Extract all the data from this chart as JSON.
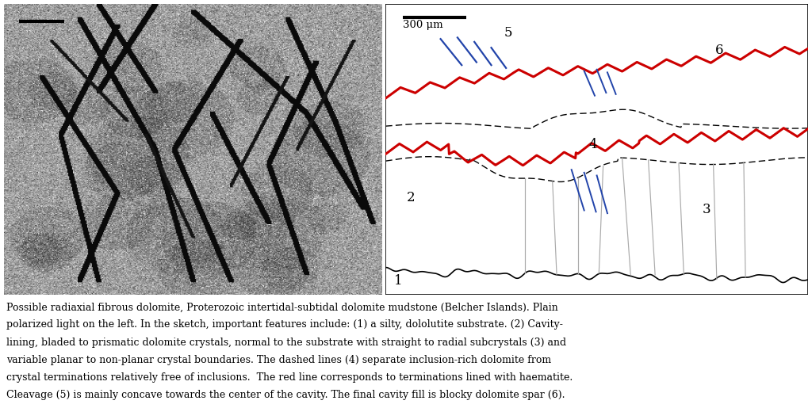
{
  "caption": "Possible radiaxial fibrous dolomite, Proterozoic intertidal-subtidal dolomite mudstone (Belcher Islands). Plain polarized light on the left. In the sketch, important features include: (1) a silty, dololutite substrate. (2) Cavity-lining, bladed to prismatic dolomite crystals, normal to the substrate with straight to radial subcrystals (3) and variable planar to non-planar crystal boundaries. The dashed lines (4) separate inclusion-rich dolomite from crystal terminations relatively free of inclusions.  The red line corresponds to terminations lined with haematite. Cleavage (5) is mainly concave towards the center of the cavity. The final cavity fill is blocky dolomite spar (6).",
  "scale_bar_label": "300 μm",
  "red_color": "#CC0000",
  "blue_color": "#2244AA",
  "black_color": "#000000",
  "bg_color": "#FFFFFF"
}
